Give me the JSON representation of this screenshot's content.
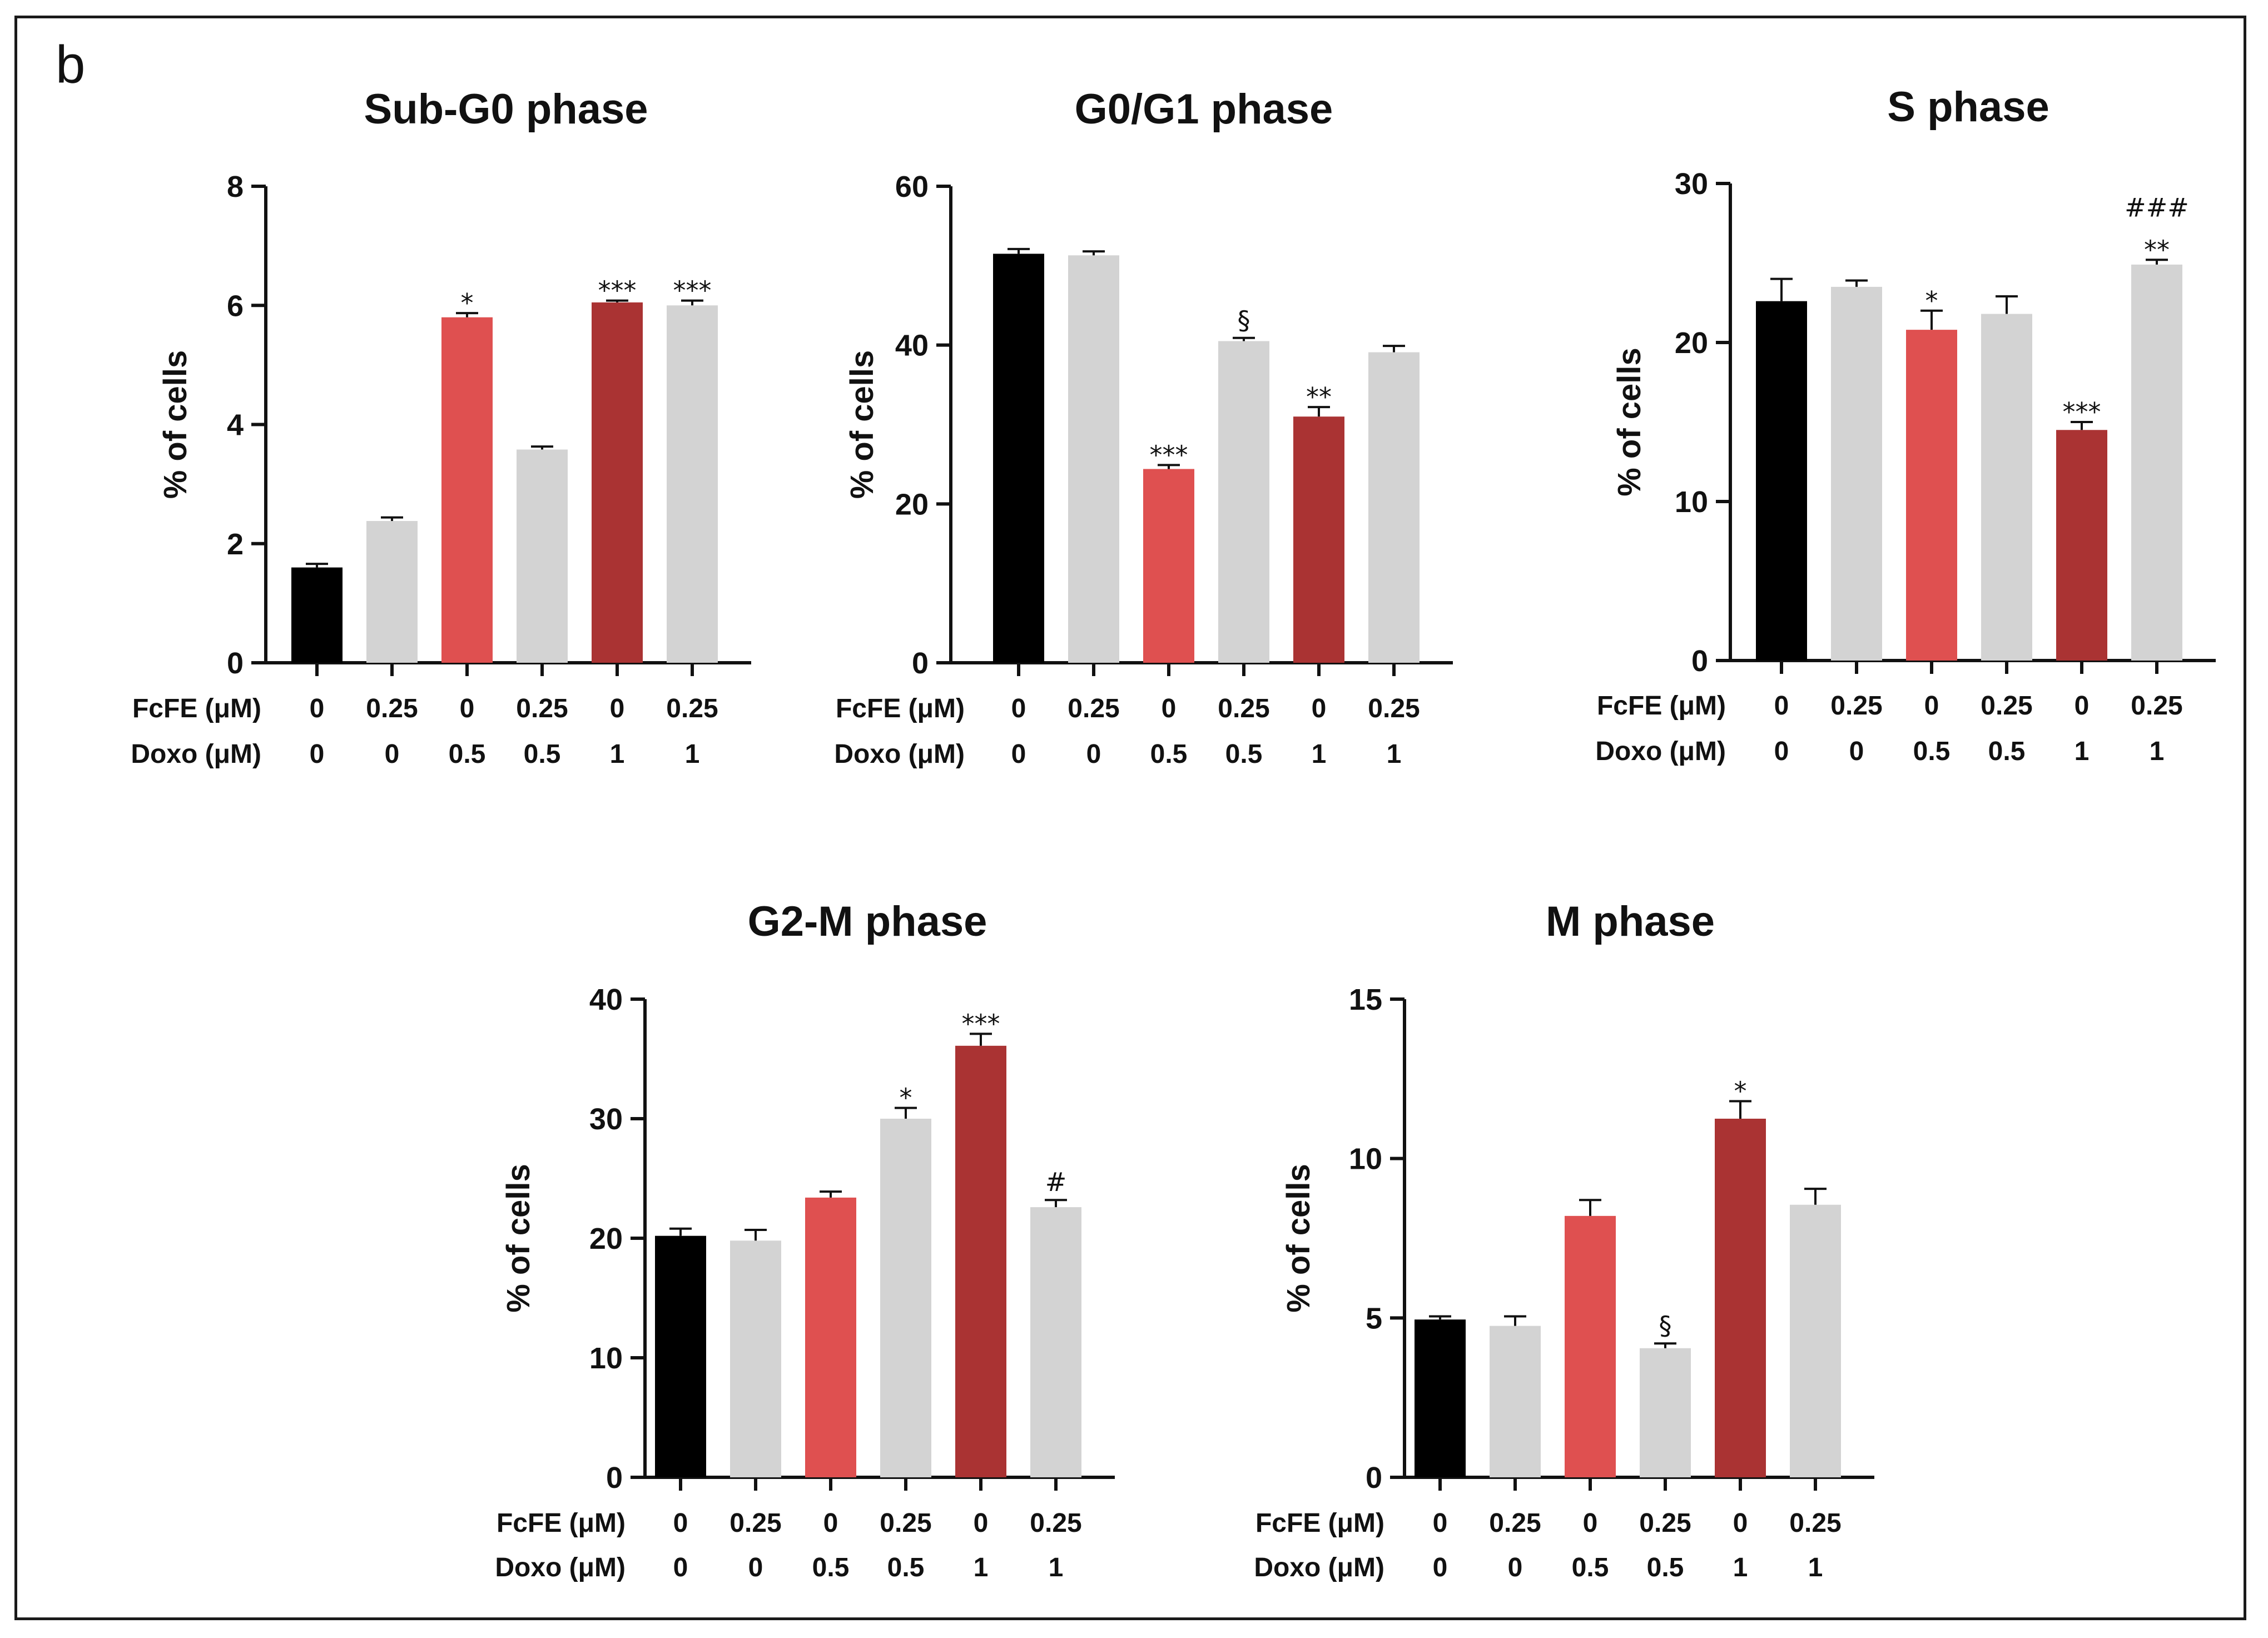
{
  "panel_label": "b",
  "colors": {
    "control": "#000000",
    "grey": "#d3d3d3",
    "red": "#df5050",
    "darkred": "#aa3333"
  },
  "chart_data": [
    {
      "type": "bar",
      "title": "Sub-G0 phase",
      "ylabel": "% of cells",
      "ylim": [
        0,
        8
      ],
      "yticks": [
        0,
        2,
        4,
        6,
        8
      ],
      "rows": [
        {
          "label": "FcFE  (μM)",
          "values": [
            "0",
            "0.25",
            "0",
            "0.25",
            "0",
            "0.25"
          ]
        },
        {
          "label": "Doxo  (μM)",
          "values": [
            "0",
            "0",
            "0.5",
            "0.5",
            "1",
            "1"
          ]
        }
      ],
      "values": [
        1.6,
        2.38,
        5.8,
        3.58,
        6.05,
        6.0
      ],
      "errors": [
        0.06,
        0.06,
        0.07,
        0.05,
        0.03,
        0.08
      ],
      "bar_colors": [
        "control",
        "grey",
        "red",
        "grey",
        "darkred",
        "grey"
      ],
      "annotations": [
        "",
        "",
        "*",
        "",
        "***",
        "***"
      ]
    },
    {
      "type": "bar",
      "title": "G0/G1 phase",
      "ylabel": "% of cells",
      "ylim": [
        0,
        60
      ],
      "yticks": [
        0,
        20,
        40,
        60
      ],
      "rows": [
        {
          "label": "FcFE  (μM)",
          "values": [
            "0",
            "0.25",
            "0",
            "0.25",
            "0",
            "0.25"
          ]
        },
        {
          "label": "Doxo  (μM)",
          "values": [
            "0",
            "0",
            "0.5",
            "0.5",
            "1",
            "1"
          ]
        }
      ],
      "values": [
        51.5,
        51.3,
        24.4,
        40.5,
        31.0,
        39.1
      ],
      "errors": [
        0.6,
        0.5,
        0.5,
        0.4,
        1.2,
        0.8
      ],
      "bar_colors": [
        "control",
        "grey",
        "red",
        "grey",
        "darkred",
        "grey"
      ],
      "annotations": [
        "",
        "",
        "***",
        "§",
        "**",
        ""
      ]
    },
    {
      "type": "bar",
      "title": "S phase",
      "ylabel": "% of cells",
      "ylim": [
        0,
        30
      ],
      "yticks": [
        0,
        10,
        20,
        30
      ],
      "rows": [
        {
          "label": "FcFE  (μM)",
          "values": [
            "0",
            "0.25",
            "0",
            "0.25",
            "0",
            "0.25"
          ]
        },
        {
          "label": "Doxo  (μM)",
          "values": [
            "0",
            "0",
            "0.5",
            "0.5",
            "1",
            "1"
          ]
        }
      ],
      "values": [
        22.6,
        23.5,
        20.8,
        21.8,
        14.5,
        24.9
      ],
      "errors": [
        1.4,
        0.4,
        1.2,
        1.1,
        0.5,
        0.3
      ],
      "bar_colors": [
        "control",
        "grey",
        "red",
        "grey",
        "darkred",
        "grey"
      ],
      "annotations": [
        "",
        "",
        "*",
        "",
        "***",
        "###\n**"
      ]
    },
    {
      "type": "bar",
      "title": "G2-M phase",
      "ylabel": "% of cells",
      "ylim": [
        0,
        40
      ],
      "yticks": [
        0,
        10,
        20,
        30,
        40
      ],
      "rows": [
        {
          "label": "FcFE  (μM)",
          "values": [
            "0",
            "0.25",
            "0",
            "0.25",
            "0",
            "0.25"
          ]
        },
        {
          "label": "Doxo  (μM)",
          "values": [
            "0",
            "0",
            "0.5",
            "0.5",
            "1",
            "1"
          ]
        }
      ],
      "values": [
        20.2,
        19.8,
        23.4,
        30.0,
        36.1,
        22.6
      ],
      "errors": [
        0.6,
        0.9,
        0.5,
        0.9,
        1.0,
        0.6
      ],
      "bar_colors": [
        "control",
        "grey",
        "red",
        "grey",
        "darkred",
        "grey"
      ],
      "annotations": [
        "",
        "",
        "",
        "*",
        "***",
        "#"
      ]
    },
    {
      "type": "bar",
      "title": "M phase",
      "ylabel": "% of cells",
      "ylim": [
        0,
        15
      ],
      "yticks": [
        0,
        5,
        10,
        15
      ],
      "rows": [
        {
          "label": "FcFE  (μM)",
          "values": [
            "0",
            "0.25",
            "0",
            "0.25",
            "0",
            "0.25"
          ]
        },
        {
          "label": "Doxo  (μM)",
          "values": [
            "0",
            "0",
            "0.5",
            "0.5",
            "1",
            "1"
          ]
        }
      ],
      "values": [
        4.95,
        4.75,
        8.2,
        4.05,
        11.25,
        8.55
      ],
      "errors": [
        0.1,
        0.3,
        0.5,
        0.15,
        0.55,
        0.5
      ],
      "bar_colors": [
        "control",
        "grey",
        "red",
        "grey",
        "darkred",
        "grey"
      ],
      "annotations": [
        "",
        "",
        "",
        "§",
        "*",
        ""
      ]
    }
  ]
}
